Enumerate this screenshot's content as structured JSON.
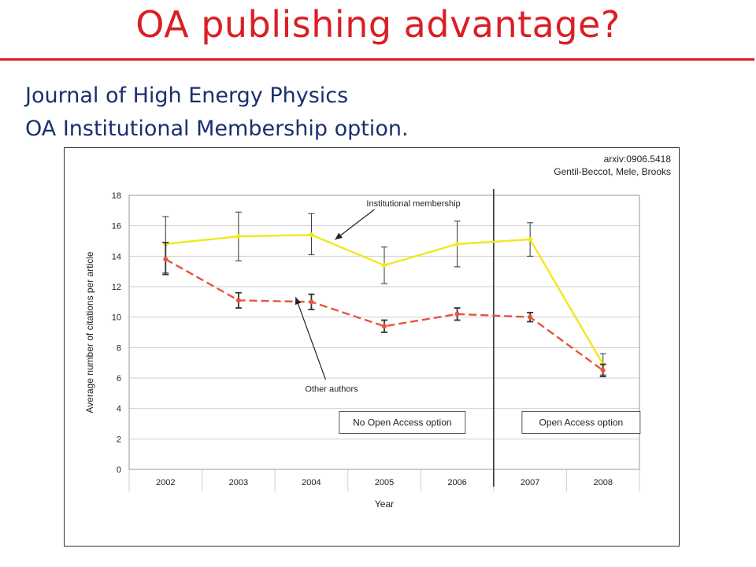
{
  "slide": {
    "title": "OA publishing advantage?",
    "subtitle_line1": "Journal of High Energy Physics",
    "subtitle_line2": "OA Institutional Membership option.",
    "title_color": "#d91f26",
    "subtitle_color": "#1a2f6e"
  },
  "chart_data": {
    "type": "line",
    "title": "",
    "citation_line1": "arxiv:0906.5418",
    "citation_line2": "Gentil-Beccot, Mele, Brooks",
    "xlabel": "Year",
    "ylabel": "Average number of citations per article",
    "categories": [
      "2002",
      "2003",
      "2004",
      "2005",
      "2006",
      "2007",
      "2008"
    ],
    "ylim": [
      0,
      18
    ],
    "yticks": [
      0,
      2,
      4,
      6,
      8,
      10,
      12,
      14,
      16,
      18
    ],
    "grid": true,
    "series": [
      {
        "name": "Institutional membership",
        "color": "#f2e71d",
        "style": "solid",
        "values": [
          14.8,
          15.3,
          15.4,
          13.4,
          14.8,
          15.1,
          6.9
        ],
        "error_low": [
          12.9,
          13.7,
          14.1,
          12.2,
          13.3,
          14.0,
          6.2
        ],
        "error_high": [
          16.6,
          16.9,
          16.8,
          14.6,
          16.3,
          16.2,
          7.6
        ]
      },
      {
        "name": "Other authors",
        "color": "#e8533f",
        "style": "dashed",
        "values": [
          13.8,
          11.1,
          11.0,
          9.4,
          10.2,
          10.0,
          6.5
        ],
        "error_low": [
          12.8,
          10.6,
          10.5,
          9.0,
          9.8,
          9.7,
          6.1
        ],
        "error_high": [
          14.9,
          11.6,
          11.5,
          9.8,
          10.6,
          10.3,
          6.9
        ]
      }
    ],
    "annotations": {
      "period_before": "No Open Access option",
      "period_after": "Open Access option",
      "divider_between": [
        "2006",
        "2007"
      ]
    }
  }
}
